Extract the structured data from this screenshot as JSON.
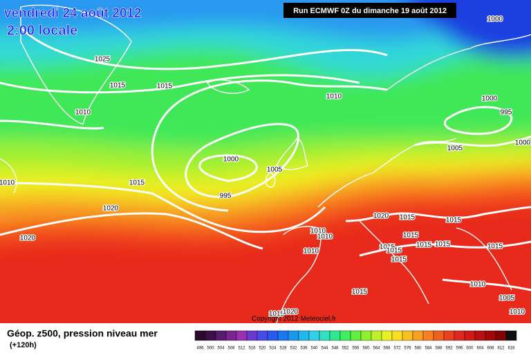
{
  "header": {
    "date": "vendredi 24 août 2012",
    "time": "2:00 locale",
    "run": "Run ECMWF 0Z du dimanche 19 août 2012"
  },
  "map": {
    "isobar_labels": [
      "1025",
      "1015",
      "1015",
      "1010",
      "1010",
      "1000",
      "995",
      "1005",
      "1000",
      "1000",
      "1000",
      "1005",
      "995",
      "1015",
      "1010",
      "1020",
      "1020",
      "1020",
      "1015",
      "1015",
      "1010",
      "1010",
      "1010",
      "1015",
      "1015",
      "1015",
      "1015",
      "1015",
      "1015",
      "1015",
      "1010",
      "1015",
      "1005",
      "1010",
      "1015",
      "1020"
    ],
    "copyright": "Copyright 2012 Meteociel.fr"
  },
  "footer": {
    "title": "Géop. z500, pression niveau mer",
    "lead": "(+120h)"
  },
  "colorbar": {
    "values": [
      496,
      500,
      504,
      508,
      512,
      516,
      520,
      524,
      528,
      532,
      536,
      540,
      544,
      548,
      552,
      556,
      560,
      564,
      568,
      572,
      576,
      580,
      584,
      588,
      592,
      596,
      600,
      604,
      608,
      612,
      616
    ],
    "colors": [
      "#2a0a2e",
      "#3c0f4a",
      "#5a1a6e",
      "#7a2490",
      "#9a2fb0",
      "#6a3ad0",
      "#4a4ae8",
      "#2a5af0",
      "#1a78f0",
      "#1a98f0",
      "#20b8f0",
      "#30d0e8",
      "#30e0c0",
      "#30e890",
      "#40f060",
      "#60f040",
      "#90f030",
      "#c0f028",
      "#e8f020",
      "#f8e020",
      "#f8c020",
      "#f8a020",
      "#f88020",
      "#f06020",
      "#e84020",
      "#e02820",
      "#d01818",
      "#b81010",
      "#a00808",
      "#800404",
      "#101010"
    ]
  }
}
